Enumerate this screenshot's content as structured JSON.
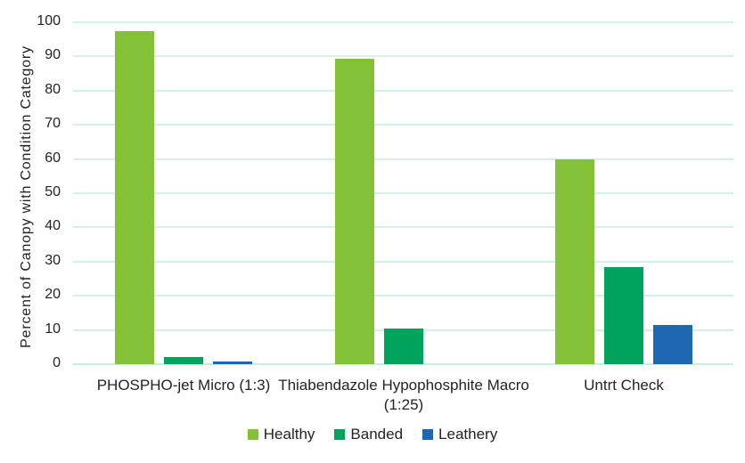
{
  "chart_data": {
    "type": "bar",
    "title": "",
    "xlabel": "",
    "ylabel": "Percent of Canopy with Condition Category",
    "ylim": [
      0,
      100
    ],
    "yticks": [
      0,
      10,
      20,
      30,
      40,
      50,
      60,
      70,
      80,
      90,
      100
    ],
    "grid": true,
    "legend_position": "bottom-center",
    "categories": [
      "PHOSPHO-jet Micro (1:3)",
      "Thiabendazole Hypophosphite Macro (1:25)",
      "Untrt Check"
    ],
    "series": [
      {
        "name": "Healthy",
        "color": "#83C137",
        "values": [
          97.5,
          89.3,
          60.0
        ]
      },
      {
        "name": "Banded",
        "color": "#00A35B",
        "values": [
          2.2,
          10.5,
          28.5
        ]
      },
      {
        "name": "Leathery",
        "color": "#1D68B1",
        "values": [
          0.7,
          0.0,
          11.4
        ]
      }
    ],
    "colors": {
      "gridline": "#D2F3E4",
      "baseline": "#C9EEDC",
      "text": "#262223",
      "background": "#FFFFFF"
    }
  }
}
